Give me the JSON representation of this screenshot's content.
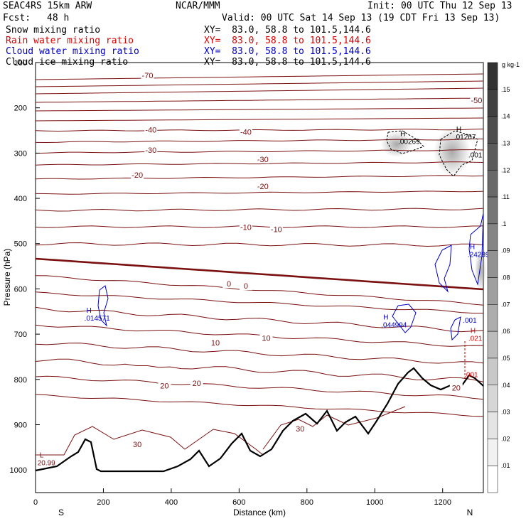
{
  "header": {
    "model": "SEAC4RS 15km ARW",
    "org": "NCAR/MMM",
    "init": "Init: 00 UTC Thu 12 Sep 13",
    "fcst_label": "Fcst:",
    "fcst_value": "48 h",
    "valid": "Valid: 00 UTC Sat 14 Sep 13 (19 CDT Fri 13 Sep 13)"
  },
  "fields": [
    {
      "label": "Snow mixing ratio",
      "xy": "XY=  83.0, 58.8 to 101.5,144.6",
      "color": "#000000"
    },
    {
      "label": "Rain water mixing ratio",
      "xy": "XY=  83.0, 58.8 to 101.5,144.6",
      "color": "#dd0000"
    },
    {
      "label": "Cloud water mixing ratio",
      "xy": "XY=  83.0, 58.8 to 101.5,144.6",
      "color": "#0000cc"
    },
    {
      "label": "Cloud ice mixing ratio",
      "xy": "XY=  83.0, 58.8 to 101.5,144.6",
      "color": "#000000"
    }
  ],
  "colors": {
    "temperature": "#7a1010",
    "terrain": "#000000",
    "cloud_water": "#0000cc",
    "rain": "#dd0000",
    "background": "#ffffff"
  },
  "chart_data": {
    "type": "line",
    "xlabel": "Distance (km)",
    "ylabel": "Pressure (hPa)",
    "xlim": [
      0,
      1320
    ],
    "ylim": [
      1050,
      100
    ],
    "x_ticks": [
      0,
      200,
      400,
      600,
      800,
      1000,
      1200
    ],
    "y_ticks": [
      100,
      200,
      300,
      400,
      500,
      600,
      700,
      800,
      900,
      1000
    ],
    "x_end_labels": {
      "left": "S",
      "right": "N"
    },
    "temperature_labels": [
      {
        "text": "-70",
        "x": 330,
        "p": 130
      },
      {
        "text": "-50",
        "x": 1300,
        "p": 185
      },
      {
        "text": "-40",
        "x": 340,
        "p": 250
      },
      {
        "text": "-40",
        "x": 620,
        "p": 255
      },
      {
        "text": "-30",
        "x": 340,
        "p": 295
      },
      {
        "text": "-30",
        "x": 670,
        "p": 315
      },
      {
        "text": "-20",
        "x": 300,
        "p": 350
      },
      {
        "text": "-20",
        "x": 670,
        "p": 375
      },
      {
        "text": "-10",
        "x": 620,
        "p": 465
      },
      {
        "text": "-10",
        "x": 710,
        "p": 470
      },
      {
        "text": "0",
        "x": 570,
        "p": 590
      },
      {
        "text": "0",
        "x": 620,
        "p": 595
      },
      {
        "text": "10",
        "x": 530,
        "p": 720
      },
      {
        "text": "10",
        "x": 680,
        "p": 710
      },
      {
        "text": "20",
        "x": 380,
        "p": 815
      },
      {
        "text": "20",
        "x": 475,
        "p": 810
      },
      {
        "text": "30",
        "x": 300,
        "p": 945
      },
      {
        "text": "30",
        "x": 780,
        "p": 910
      },
      {
        "text": "20",
        "x": 1240,
        "p": 820
      }
    ],
    "extrema": [
      {
        "mark": "H",
        "value": ".00269",
        "x": 1075,
        "p": 275,
        "color": "#000000"
      },
      {
        "mark": "H",
        "value": ".01267",
        "x": 1240,
        "p": 265,
        "color": "#000000"
      },
      {
        "mark": "",
        "value": ".001",
        "x": 1282,
        "p": 305,
        "color": "#000000"
      },
      {
        "mark": "H",
        "value": ".24289",
        "x": 1280,
        "p": 525,
        "color": "#0000cc"
      },
      {
        "mark": "H",
        "value": ".014571",
        "x": 150,
        "p": 665,
        "color": "#0000cc"
      },
      {
        "mark": "H",
        "value": ".044994",
        "x": 1025,
        "p": 680,
        "color": "#0000cc"
      },
      {
        "mark": "",
        "value": ".001",
        "x": 1266,
        "p": 670,
        "color": "#0000cc"
      },
      {
        "mark": "H",
        "value": ".021",
        "x": 1282,
        "p": 710,
        "color": "#dd0000"
      },
      {
        "mark": "",
        "value": ".001",
        "x": 1270,
        "p": 790,
        "color": "#dd0000"
      },
      {
        "mark": "L",
        "value": "20.99",
        "x": 12,
        "p": 985,
        "color": "#7a1010"
      }
    ],
    "colorbar": {
      "unit": "g kg-1",
      "ticks": [
        ".15",
        ".14",
        ".13",
        ".12",
        ".11",
        ".1",
        ".09",
        ".08",
        ".07",
        ".06",
        ".05",
        ".04",
        ".03",
        ".02",
        ".01"
      ]
    }
  }
}
